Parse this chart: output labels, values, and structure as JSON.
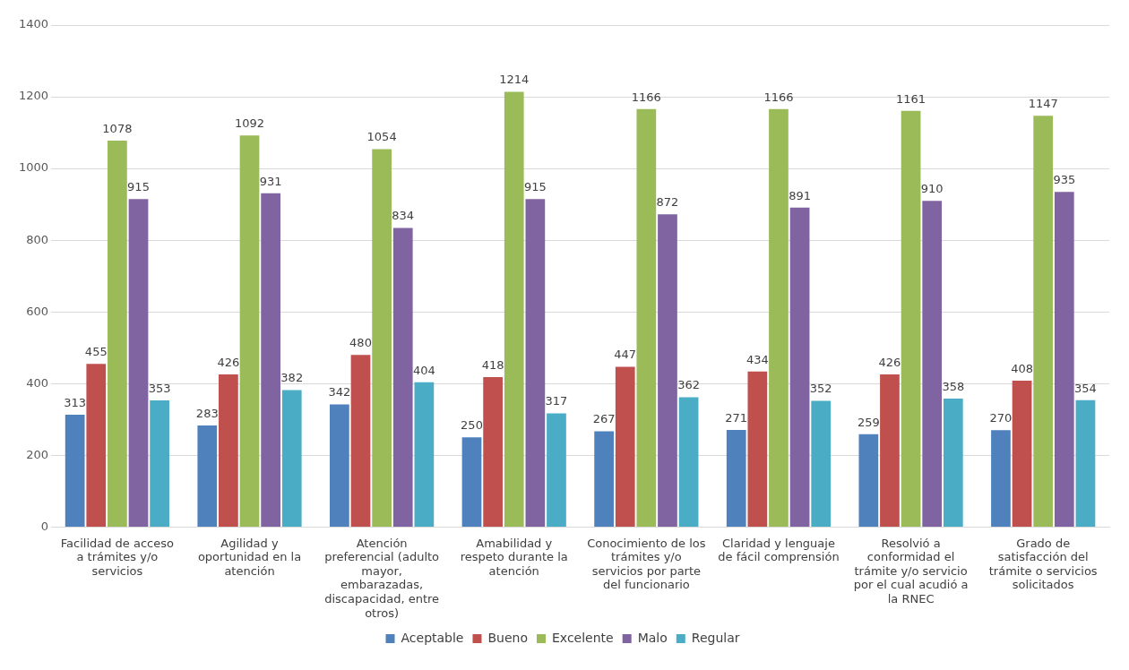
{
  "chart_data": {
    "type": "bar",
    "categories": [
      "Facilidad de acceso a trámites y/o servicios",
      "Agilidad y oportunidad en la atención",
      "Atención preferencial (adulto mayor, embarazadas, discapacidad, entre otros)",
      "Amabilidad y respeto durante la atención",
      "Conocimiento de los trámites y/o servicios por parte del funcionario",
      "Claridad y lenguaje de fácil comprensión",
      "Resolvió a conformidad el trámite y/o servicio por el cual acudió a la RNEC",
      "Grado de satisfacción del trámite o servicios solicitados"
    ],
    "series": [
      {
        "name": "Aceptable",
        "color": "#4f81bd",
        "values": [
          313,
          283,
          342,
          250,
          267,
          271,
          259,
          270
        ]
      },
      {
        "name": "Bueno",
        "color": "#c0504d",
        "values": [
          455,
          426,
          480,
          418,
          447,
          434,
          426,
          408
        ]
      },
      {
        "name": "Excelente",
        "color": "#9bbb59",
        "values": [
          1078,
          1092,
          1054,
          1214,
          1166,
          1166,
          1161,
          1147
        ]
      },
      {
        "name": "Malo",
        "color": "#8064a2",
        "values": [
          915,
          931,
          834,
          915,
          872,
          891,
          910,
          935
        ]
      },
      {
        "name": "Regular",
        "color": "#4bacc6",
        "values": [
          353,
          382,
          404,
          317,
          362,
          352,
          358,
          354
        ]
      }
    ],
    "ylim": [
      0,
      1400
    ],
    "yticks": [
      0,
      200,
      400,
      600,
      800,
      1000,
      1200,
      1400
    ],
    "grid": "y",
    "legend": "bottom",
    "data_labels": true
  }
}
